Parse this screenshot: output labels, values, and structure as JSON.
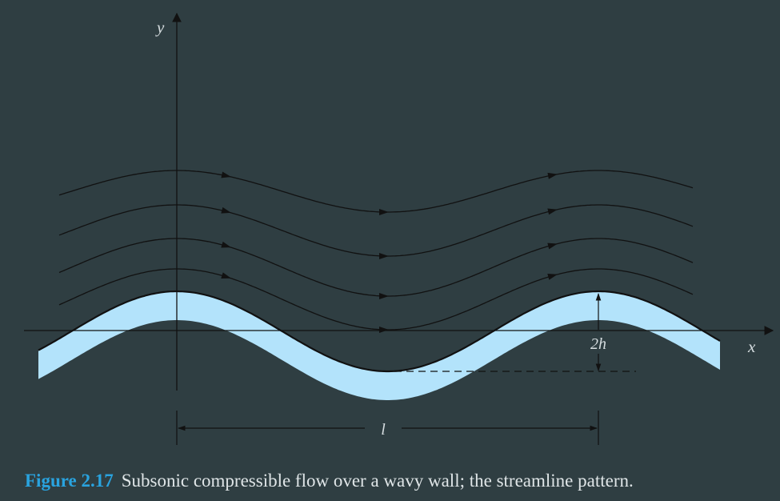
{
  "diagram": {
    "x_axis_label": "x",
    "y_axis_label": "y",
    "amplitude_label": "2h",
    "wavelength_label": "l",
    "streamline_count": 4,
    "colors": {
      "background": "#2f3e42",
      "wall_fill": "#b3e3fb",
      "line": "#111111",
      "text": "#d6dde0",
      "accent": "#29a3df"
    }
  },
  "caption": {
    "figure_number": "Figure 2.17",
    "text": "Subsonic compressible flow over a wavy wall; the streamline pattern."
  }
}
